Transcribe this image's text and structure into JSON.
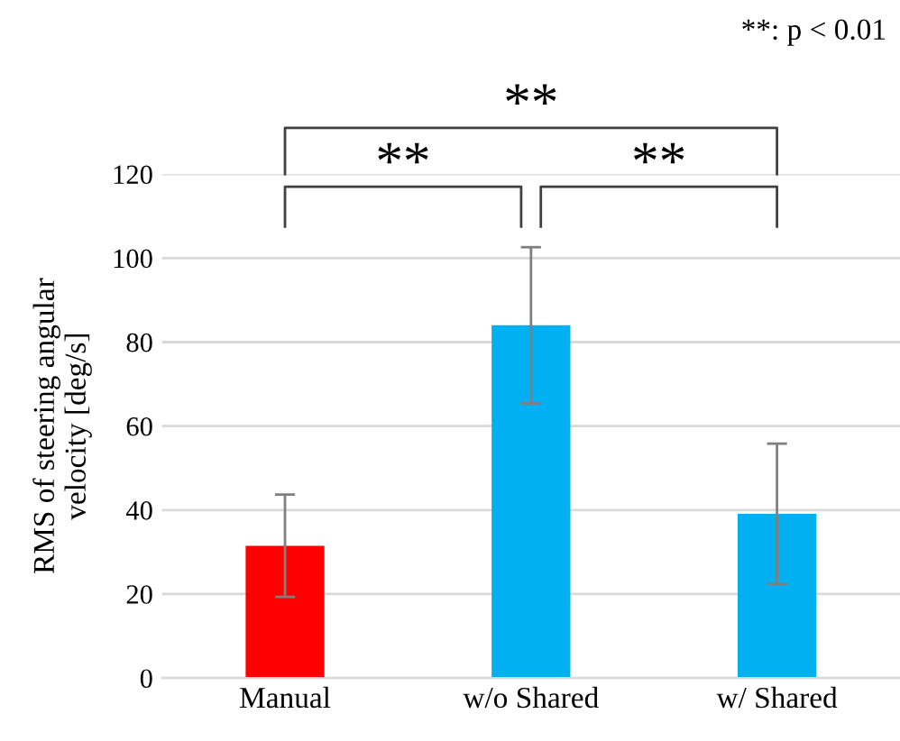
{
  "chart_data": {
    "type": "bar",
    "ylabel": "RMS of steering angular\nvelocity [deg/s]",
    "categories": [
      "Manual",
      "w/o Shared",
      "w/ Shared"
    ],
    "values": [
      31.5,
      84.0,
      39.1
    ],
    "colors": [
      "#ff0000",
      "#00b0f0",
      "#00b0f0"
    ],
    "errors": [
      12.2,
      18.6,
      16.7
    ],
    "ylim": [
      0,
      120
    ],
    "yticks": [
      0,
      20,
      40,
      60,
      80,
      100,
      120
    ],
    "grid": "y",
    "annotations": [
      "**: p < 0.01",
      "**",
      "**",
      "**"
    ]
  }
}
